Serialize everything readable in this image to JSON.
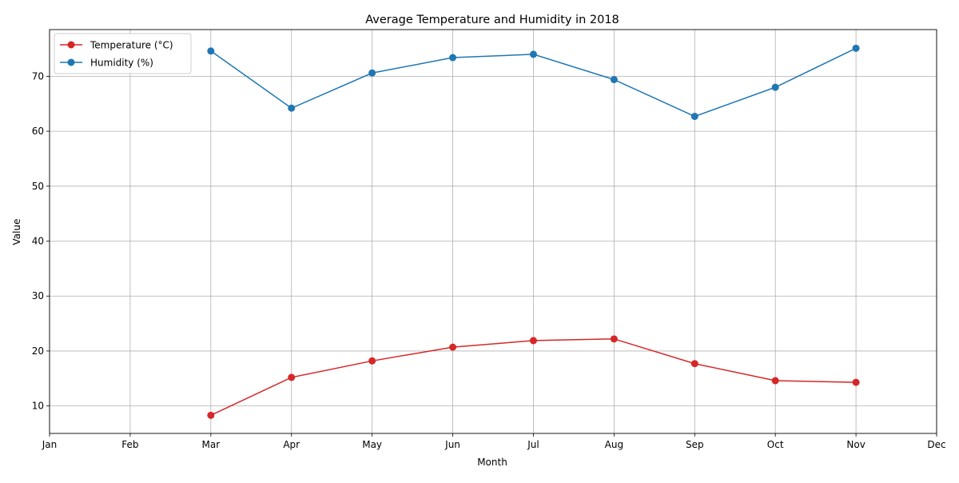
{
  "chart_data": {
    "type": "line",
    "title": "Average Temperature and Humidity in 2018",
    "xlabel": "Month",
    "ylabel": "Value",
    "categories": [
      "Jan",
      "Feb",
      "Mar",
      "Apr",
      "May",
      "Jun",
      "Jul",
      "Aug",
      "Sep",
      "Oct",
      "Nov",
      "Dec"
    ],
    "yticks": [
      10,
      20,
      30,
      40,
      50,
      60,
      70
    ],
    "ylim": [
      5,
      78.5
    ],
    "grid": true,
    "legend_position": "top-left",
    "series": [
      {
        "name": "Temperature (°C)",
        "color": "#d62728",
        "marker": "circle",
        "values": [
          null,
          null,
          8.3,
          15.2,
          18.2,
          20.7,
          21.9,
          22.2,
          17.7,
          14.6,
          14.3,
          null
        ]
      },
      {
        "name": "Humidity (%)",
        "color": "#1f77b4",
        "marker": "circle",
        "values": [
          null,
          null,
          74.6,
          64.2,
          70.6,
          73.4,
          74.0,
          69.4,
          62.7,
          68.0,
          75.1,
          null
        ]
      }
    ]
  }
}
